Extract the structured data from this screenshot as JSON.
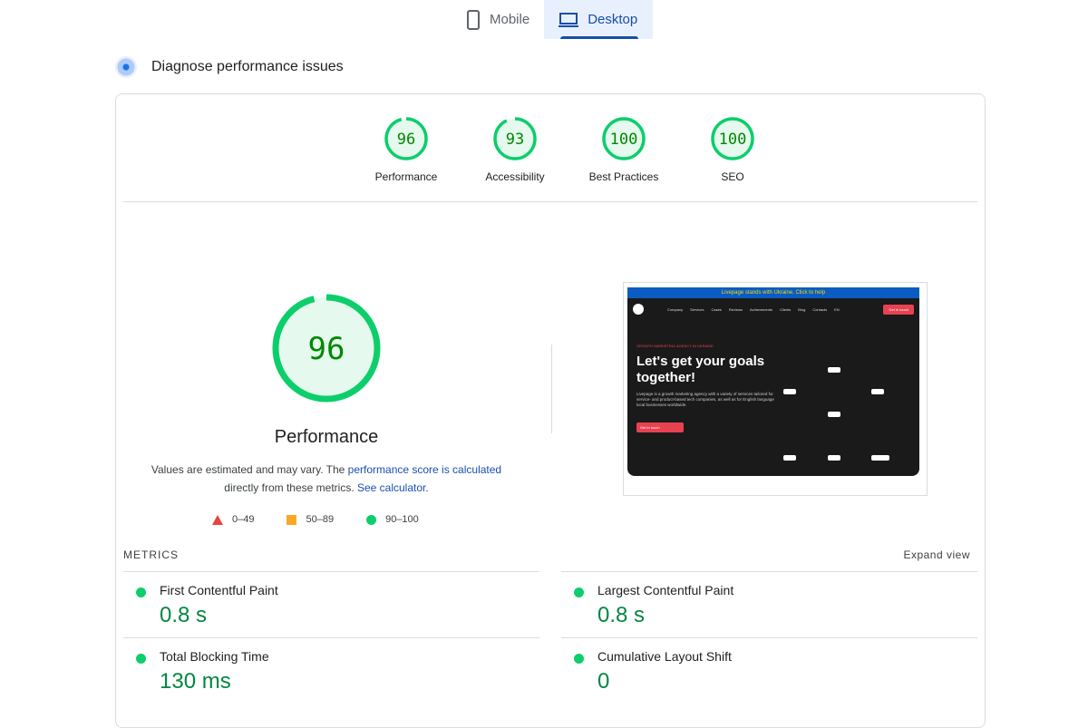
{
  "tabs": [
    {
      "label": "Mobile",
      "icon": "phone-icon",
      "active": false
    },
    {
      "label": "Desktop",
      "icon": "laptop-icon",
      "active": true
    }
  ],
  "section_title": "Diagnose performance issues",
  "colors": {
    "pass": "#0cce6b",
    "average": "#ffa400",
    "fail": "#ff4e42",
    "accent": "#174ea6"
  },
  "scores": [
    {
      "label": "Performance",
      "value": 96
    },
    {
      "label": "Accessibility",
      "value": 93
    },
    {
      "label": "Best Practices",
      "value": 100
    },
    {
      "label": "SEO",
      "value": 100
    }
  ],
  "main": {
    "score": "96",
    "title": "Performance",
    "note_pre": "Values are estimated and may vary. The ",
    "note_link1": "performance score is calculated",
    "note_mid": " directly from these metrics. ",
    "note_link2": "See calculator",
    "note_post": "."
  },
  "legend": [
    {
      "range": "0–49",
      "shape": "triangle"
    },
    {
      "range": "50–89",
      "shape": "square"
    },
    {
      "range": "90–100",
      "shape": "circle"
    }
  ],
  "screenshot": {
    "banner": "Livepage stands with Ukraine. Click to help",
    "nav": [
      "Company",
      "Services",
      "Cases",
      "Reviews",
      "Achievements",
      "Clients",
      "Blog",
      "Contacts",
      "EN"
    ],
    "nav_cta": "Get in touch",
    "eyebrow": "GROWTH MARKETING AGENCY IN UKRAINE",
    "headline": "Let's get your goals together!",
    "description": "Livepage is a growth marketing agency with a variety of services tailored for service- and product-based tech companies, as well as for English language local businesses worldwide.",
    "cta": "Get in touch"
  },
  "metrics": {
    "label": "METRICS",
    "expand": "Expand view",
    "items": [
      {
        "name": "First Contentful Paint",
        "value": "0.8 s"
      },
      {
        "name": "Largest Contentful Paint",
        "value": "0.8 s"
      },
      {
        "name": "Total Blocking Time",
        "value": "130 ms"
      },
      {
        "name": "Cumulative Layout Shift",
        "value": "0"
      }
    ]
  }
}
